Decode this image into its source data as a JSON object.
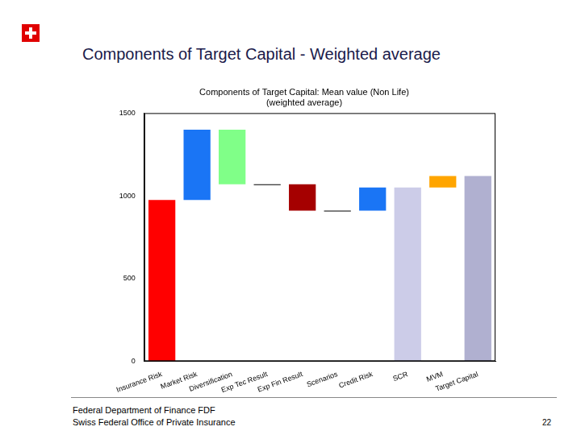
{
  "heading": "Components of Target Capital - Weighted average",
  "footer": [
    "Federal Department of Finance FDF",
    "Swiss Federal Office of Private Insurance"
  ],
  "page_number": "22",
  "chart_data": {
    "type": "bar",
    "title": [
      "Components of Target Capital: Mean value (Non Life)",
      "(weighted average)"
    ],
    "categories": [
      "Insurance Risk",
      "Market Risk",
      "Diversification",
      "Exp Tec Result",
      "Exp Fin Result",
      "Scenarios",
      "Credit Risk",
      "SCR",
      "MVM",
      "Target Capital"
    ],
    "values": [
      [
        0,
        975
      ],
      [
        975,
        1400
      ],
      [
        1070,
        1400
      ],
      [
        1065,
        1070
      ],
      [
        910,
        1070
      ],
      [
        905,
        910
      ],
      [
        910,
        1050
      ],
      [
        0,
        1050
      ],
      [
        1050,
        1120
      ],
      [
        0,
        1120
      ]
    ],
    "colors": [
      "#ff0000",
      "#1a75f5",
      "#80ff88",
      "#000000",
      "#a50000",
      "#000000",
      "#1a75f5",
      "#cccce8",
      "#ffa500",
      "#b0b0d0"
    ],
    "ylim": [
      0,
      1500
    ],
    "yticks": [
      0,
      500,
      1000,
      1500
    ],
    "grid": false
  }
}
